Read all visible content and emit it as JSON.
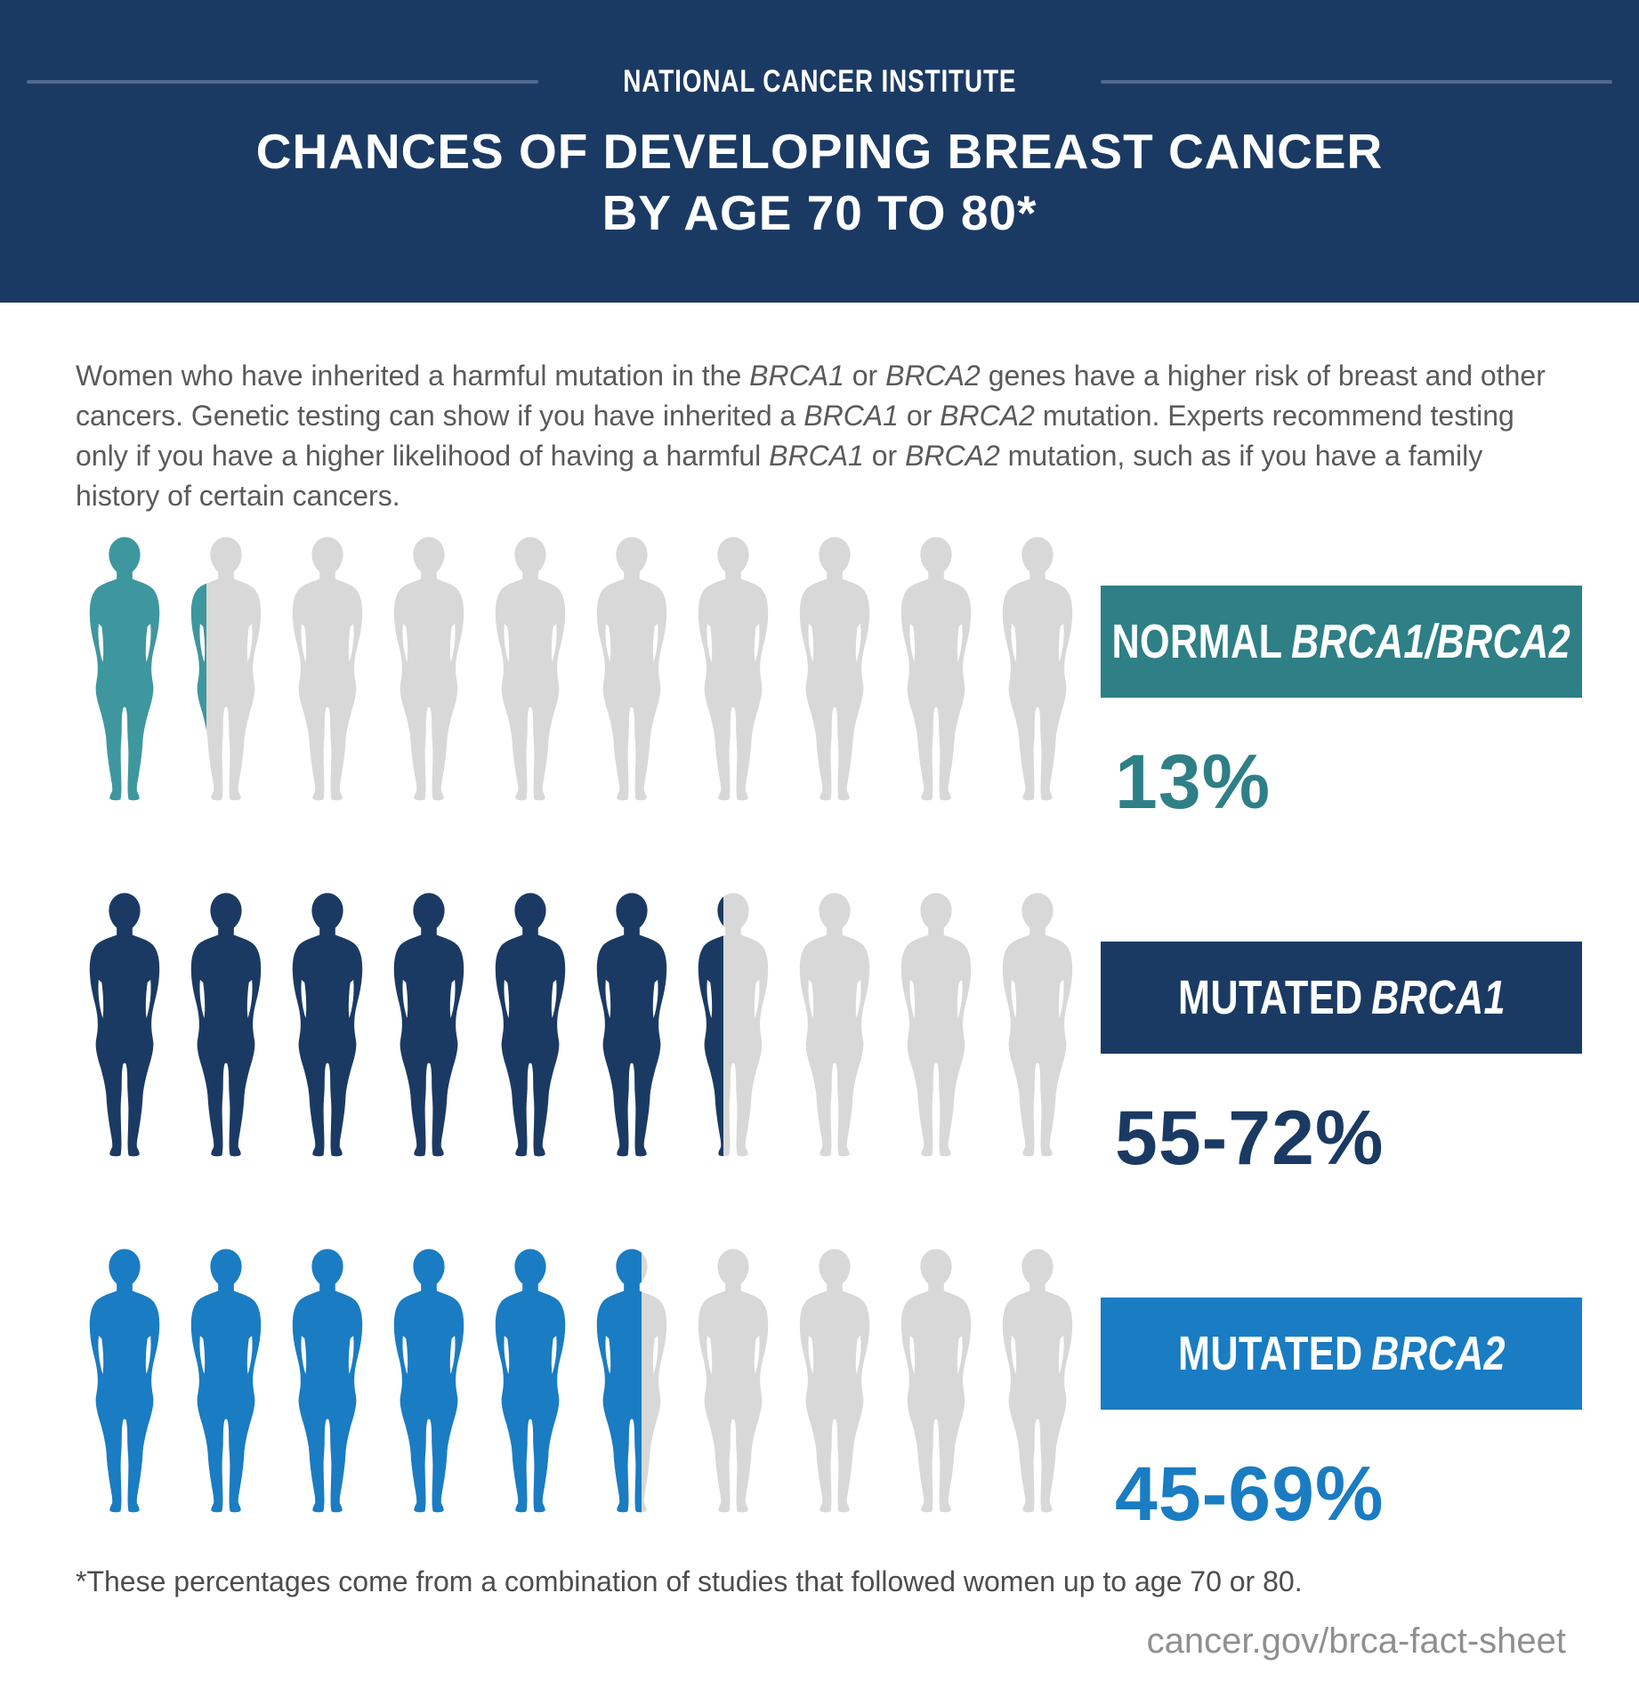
{
  "header": {
    "eyebrow": "NATIONAL CANCER INSTITUTE",
    "title_line1": "CHANCES OF DEVELOPING BREAST CANCER",
    "title_line2": "BY AGE 70 TO 80*",
    "bg_color": "#1B3A63",
    "rule_color": "#50698F"
  },
  "intro_segments": [
    {
      "t": "Women who have inherited a harmful mutation in the "
    },
    {
      "t": "BRCA1",
      "i": true
    },
    {
      "t": " or "
    },
    {
      "t": "BRCA2",
      "i": true
    },
    {
      "t": " genes have a higher risk of breast and other cancers. Genetic testing can show if you have inherited a "
    },
    {
      "t": "BRCA1",
      "i": true
    },
    {
      "t": " or "
    },
    {
      "t": "BRCA2",
      "i": true
    },
    {
      "t": " mutation. Experts recommend testing only if you have a higher likelihood of having a harmful "
    },
    {
      "t": "BRCA1",
      "i": true
    },
    {
      "t": " or "
    },
    {
      "t": "BRCA2",
      "i": true
    },
    {
      "t": " mutation, such as if you have a family history of certain cancers."
    }
  ],
  "chart_data": {
    "type": "pictograph",
    "figures_per_row": 10,
    "figure_unit_percent": 10,
    "unfilled_color": "#D8D8D8",
    "rows": [
      {
        "label_regular": "NORMAL",
        "label_italic": "BRCA1/BRCA2",
        "value_label": "13%",
        "percent_min": 13,
        "percent_max": 13,
        "figures_filled": 1.3,
        "figure_color": "#3E979E",
        "box_color": "#2E7F86",
        "value_color": "#2E7F86"
      },
      {
        "label_regular": "MUTATED",
        "label_italic": "BRCA1",
        "value_label": "55-72%",
        "percent_min": 55,
        "percent_max": 72,
        "figures_filled": 6.4,
        "figure_color": "#1B3A63",
        "box_color": "#1B3A63",
        "value_color": "#1B3A63"
      },
      {
        "label_regular": "MUTATED",
        "label_italic": "BRCA2",
        "value_label": "45-69%",
        "percent_min": 45,
        "percent_max": 69,
        "figures_filled": 5.6,
        "figure_color": "#1A7CC2",
        "box_color": "#1A7CC2",
        "value_color": "#1A7CC2"
      }
    ]
  },
  "footnote": "*These percentages come from a combination of studies that followed women up to age 70 or 80.",
  "source": "cancer.gov/brca-fact-sheet"
}
